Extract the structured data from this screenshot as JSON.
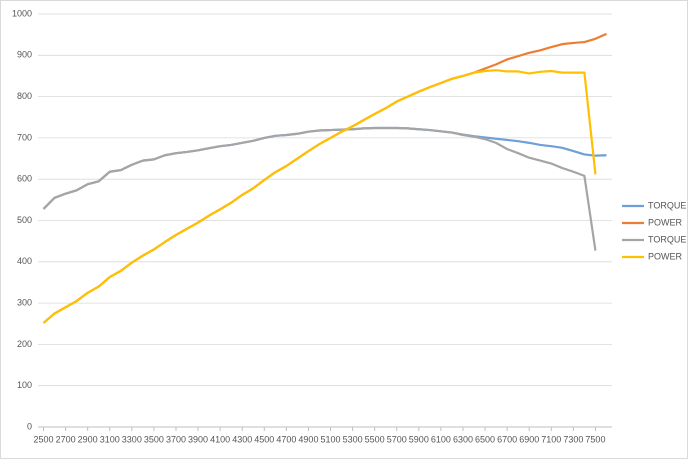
{
  "chart_data": {
    "type": "line",
    "x": [
      2500,
      2600,
      2700,
      2800,
      2900,
      3000,
      3100,
      3200,
      3300,
      3400,
      3500,
      3600,
      3700,
      3800,
      3900,
      4000,
      4100,
      4200,
      4300,
      4400,
      4500,
      4600,
      4700,
      4800,
      4900,
      5000,
      5100,
      5200,
      5300,
      5400,
      5500,
      5600,
      5700,
      5800,
      5900,
      6000,
      6100,
      6200,
      6300,
      6400,
      6500,
      6600,
      6700,
      6800,
      6900,
      7000,
      7100,
      7200,
      7300,
      7400,
      7500,
      7600
    ],
    "series": [
      {
        "name": "TORQUE",
        "color": "#6f9fd8",
        "values": [
          528,
          555,
          565,
          573,
          588,
          595,
          618,
          622,
          635,
          645,
          648,
          658,
          663,
          666,
          670,
          675,
          680,
          683,
          688,
          693,
          700,
          705,
          707,
          710,
          715,
          718,
          719,
          720,
          721,
          723,
          724,
          724,
          724,
          723,
          721,
          719,
          716,
          713,
          708,
          704,
          701,
          698,
          695,
          692,
          688,
          683,
          680,
          676,
          668,
          660,
          657,
          658
        ]
      },
      {
        "name": "POWER",
        "color": "#ed7d31",
        "values": [
          252,
          275,
          290,
          305,
          325,
          340,
          363,
          378,
          398,
          415,
          430,
          448,
          465,
          480,
          495,
          512,
          527,
          543,
          562,
          578,
          598,
          617,
          632,
          650,
          668,
          685,
          700,
          715,
          728,
          743,
          758,
          772,
          788,
          800,
          812,
          823,
          833,
          843,
          850,
          858,
          868,
          878,
          890,
          898,
          906,
          912,
          920,
          927,
          930,
          932,
          940,
          952
        ]
      },
      {
        "name": "TORQUE",
        "color": "#a5a5a5",
        "values": [
          528,
          555,
          565,
          573,
          588,
          595,
          618,
          622,
          635,
          645,
          648,
          658,
          663,
          666,
          670,
          675,
          680,
          683,
          688,
          693,
          700,
          705,
          707,
          710,
          715,
          718,
          719,
          720,
          721,
          723,
          724,
          724,
          724,
          723,
          721,
          719,
          716,
          713,
          707,
          703,
          697,
          688,
          673,
          663,
          652,
          645,
          638,
          627,
          618,
          608,
          427,
          null
        ]
      },
      {
        "name": "POWER",
        "color": "#ffc000",
        "values": [
          252,
          275,
          290,
          305,
          325,
          340,
          363,
          378,
          398,
          415,
          430,
          448,
          465,
          480,
          495,
          512,
          527,
          543,
          562,
          578,
          598,
          617,
          632,
          650,
          668,
          685,
          700,
          715,
          728,
          743,
          758,
          772,
          788,
          800,
          812,
          823,
          833,
          843,
          850,
          858,
          862,
          864,
          861,
          861,
          856,
          860,
          862,
          858,
          858,
          858,
          612,
          null
        ]
      }
    ],
    "xlim": [
      2450,
      7650
    ],
    "xticks": [
      2500,
      2700,
      2900,
      3100,
      3300,
      3500,
      3700,
      3900,
      4100,
      4300,
      4500,
      4700,
      4900,
      5100,
      5300,
      5500,
      5700,
      5900,
      6100,
      6300,
      6500,
      6700,
      6900,
      7100,
      7300,
      7500
    ],
    "ylim": [
      0,
      1000
    ],
    "yticks": [
      0,
      100,
      200,
      300,
      400,
      500,
      600,
      700,
      800,
      900,
      1000
    ],
    "grid": true,
    "legend": "right"
  }
}
